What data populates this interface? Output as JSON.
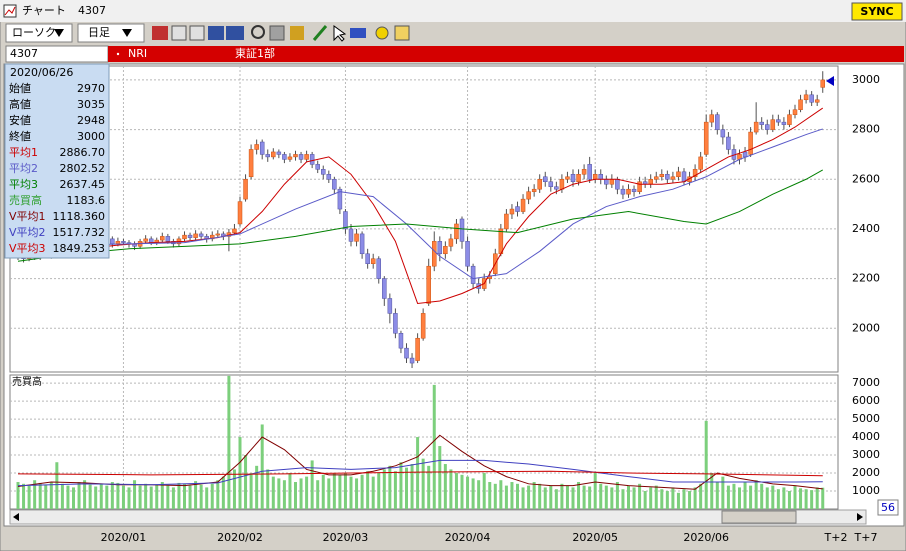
{
  "window": {
    "title": "チャート",
    "code": "4307",
    "sync": "SYNC"
  },
  "toolbar": {
    "chart_style": "ローソク",
    "period": "日足"
  },
  "header": {
    "code": "4307",
    "name": "NRI",
    "market": "東証1部"
  },
  "info": {
    "date": "2020/06/26",
    "ohlc_labels": [
      "始値",
      "高値",
      "安値",
      "終値"
    ],
    "ma_values": [
      "2886.70",
      "2802.52",
      "2637.45"
    ],
    "vma_values": [
      "1118.360",
      "1517.732",
      "1849.253"
    ]
  },
  "footer": {
    "offset_labels": [
      "T+2",
      "T+7"
    ],
    "count": 56
  },
  "chart_data": [
    {
      "type": "candlestick",
      "up_color": "#ff7f3f",
      "down_color": "#8c8ce6",
      "ylim": [
        1824,
        3056
      ],
      "yticks": [
        2000,
        2200,
        2400,
        2600,
        2800,
        3000
      ],
      "grid": true,
      "open": [
        2300,
        2290,
        2280,
        2300,
        2285,
        2295,
        2300,
        2290,
        2310,
        2330,
        2320,
        2340,
        2345,
        2330,
        2350,
        2340,
        2355,
        2360,
        2340,
        2350,
        2345,
        2340,
        2330,
        2350,
        2360,
        2345,
        2355,
        2370,
        2350,
        2340,
        2360,
        2375,
        2365,
        2380,
        2370,
        2360,
        2375,
        2380,
        2370,
        2385,
        2420,
        2520,
        2610,
        2720,
        2750,
        2700,
        2690,
        2710,
        2700,
        2680,
        2690,
        2700,
        2680,
        2700,
        2660,
        2640,
        2620,
        2600,
        2560,
        2470,
        2400,
        2350,
        2380,
        2300,
        2260,
        2280,
        2200,
        2120,
        2060,
        1980,
        1920,
        1880,
        1870,
        1960,
        2100,
        2250,
        2350,
        2300,
        2330,
        2360,
        2440,
        2350,
        2250,
        2180,
        2160,
        2200,
        2220,
        2300,
        2400,
        2460,
        2490,
        2470,
        2520,
        2550,
        2560,
        2610,
        2590,
        2570,
        2560,
        2600,
        2620,
        2590,
        2620,
        2660,
        2600,
        2620,
        2600,
        2580,
        2600,
        2560,
        2540,
        2560,
        2550,
        2590,
        2580,
        2600,
        2610,
        2620,
        2600,
        2610,
        2630,
        2590,
        2610,
        2640,
        2700,
        2830,
        2860,
        2800,
        2770,
        2720,
        2680,
        2710,
        2700,
        2790,
        2830,
        2820,
        2800,
        2840,
        2830,
        2820,
        2860,
        2880,
        2920,
        2940,
        2910,
        2970
      ],
      "high": [
        2315,
        2300,
        2315,
        2310,
        2305,
        2315,
        2310,
        2325,
        2340,
        2345,
        2355,
        2360,
        2355,
        2365,
        2360,
        2370,
        2375,
        2370,
        2365,
        2360,
        2355,
        2350,
        2360,
        2375,
        2370,
        2365,
        2385,
        2380,
        2360,
        2370,
        2390,
        2385,
        2395,
        2390,
        2380,
        2390,
        2395,
        2390,
        2400,
        2420,
        2530,
        2620,
        2740,
        2760,
        2760,
        2720,
        2725,
        2720,
        2710,
        2705,
        2715,
        2710,
        2715,
        2710,
        2675,
        2655,
        2635,
        2610,
        2570,
        2480,
        2420,
        2400,
        2390,
        2320,
        2300,
        2290,
        2210,
        2140,
        2080,
        1990,
        1940,
        1900,
        1980,
        2080,
        2280,
        2390,
        2370,
        2350,
        2380,
        2440,
        2450,
        2370,
        2260,
        2200,
        2220,
        2230,
        2320,
        2420,
        2480,
        2500,
        2510,
        2540,
        2570,
        2580,
        2620,
        2630,
        2610,
        2590,
        2620,
        2630,
        2640,
        2640,
        2660,
        2690,
        2640,
        2640,
        2615,
        2620,
        2610,
        2575,
        2580,
        2575,
        2610,
        2610,
        2620,
        2630,
        2640,
        2635,
        2630,
        2650,
        2645,
        2630,
        2660,
        2710,
        2860,
        2880,
        2870,
        2820,
        2790,
        2740,
        2720,
        2730,
        2810,
        2910,
        2850,
        2840,
        2860,
        2860,
        2850,
        2880,
        2900,
        2940,
        2960,
        2955,
        2940,
        3035
      ],
      "low": [
        2275,
        2265,
        2270,
        2275,
        2275,
        2285,
        2280,
        2285,
        2300,
        2310,
        2315,
        2330,
        2320,
        2325,
        2330,
        2335,
        2345,
        2325,
        2330,
        2335,
        2325,
        2315,
        2320,
        2340,
        2335,
        2335,
        2345,
        2340,
        2325,
        2330,
        2350,
        2355,
        2355,
        2360,
        2345,
        2350,
        2365,
        2355,
        2310,
        2375,
        2410,
        2510,
        2600,
        2700,
        2680,
        2670,
        2680,
        2685,
        2665,
        2670,
        2675,
        2665,
        2670,
        2645,
        2625,
        2600,
        2585,
        2540,
        2460,
        2380,
        2330,
        2330,
        2280,
        2240,
        2240,
        2180,
        2090,
        2020,
        1960,
        1900,
        1860,
        1840,
        1860,
        1950,
        2090,
        2230,
        2270,
        2280,
        2310,
        2340,
        2320,
        2230,
        2160,
        2140,
        2150,
        2180,
        2210,
        2290,
        2390,
        2440,
        2450,
        2460,
        2500,
        2530,
        2545,
        2570,
        2550,
        2540,
        2545,
        2585,
        2570,
        2575,
        2600,
        2585,
        2585,
        2580,
        2560,
        2565,
        2540,
        2520,
        2525,
        2530,
        2540,
        2565,
        2565,
        2585,
        2595,
        2585,
        2585,
        2595,
        2575,
        2575,
        2595,
        2625,
        2690,
        2810,
        2780,
        2740,
        2700,
        2660,
        2660,
        2670,
        2690,
        2780,
        2800,
        2780,
        2790,
        2815,
        2800,
        2810,
        2845,
        2870,
        2905,
        2895,
        2895,
        2948
      ],
      "close": [
        2290,
        2280,
        2300,
        2285,
        2295,
        2300,
        2290,
        2310,
        2330,
        2320,
        2340,
        2345,
        2330,
        2350,
        2340,
        2355,
        2360,
        2340,
        2350,
        2345,
        2340,
        2330,
        2350,
        2360,
        2345,
        2355,
        2370,
        2350,
        2340,
        2360,
        2375,
        2365,
        2380,
        2370,
        2360,
        2375,
        2380,
        2370,
        2385,
        2400,
        2510,
        2600,
        2720,
        2740,
        2700,
        2690,
        2710,
        2700,
        2680,
        2690,
        2700,
        2680,
        2700,
        2660,
        2640,
        2620,
        2600,
        2560,
        2480,
        2400,
        2350,
        2380,
        2300,
        2260,
        2280,
        2200,
        2120,
        2060,
        1980,
        1920,
        1880,
        1860,
        1960,
        2060,
        2250,
        2350,
        2300,
        2330,
        2360,
        2420,
        2350,
        2250,
        2180,
        2160,
        2200,
        2210,
        2300,
        2400,
        2460,
        2480,
        2470,
        2520,
        2550,
        2560,
        2600,
        2590,
        2570,
        2560,
        2600,
        2610,
        2590,
        2620,
        2640,
        2600,
        2620,
        2600,
        2580,
        2600,
        2560,
        2540,
        2560,
        2550,
        2590,
        2580,
        2600,
        2610,
        2620,
        2600,
        2610,
        2630,
        2590,
        2610,
        2640,
        2690,
        2830,
        2860,
        2800,
        2770,
        2720,
        2680,
        2700,
        2690,
        2790,
        2830,
        2820,
        2800,
        2840,
        2830,
        2820,
        2860,
        2880,
        2920,
        2940,
        2910,
        2920,
        3000
      ],
      "series": [
        {
          "name": "平均1",
          "color": "#cc0000",
          "x": [
            0,
            6,
            12,
            18,
            24,
            30,
            36,
            40,
            44,
            48,
            52,
            56,
            60,
            64,
            68,
            72,
            76,
            80,
            84,
            88,
            92,
            96,
            100,
            104,
            108,
            112,
            116,
            120,
            124,
            128,
            132,
            136,
            140,
            145
          ],
          "values": [
            2290,
            2300,
            2320,
            2335,
            2345,
            2350,
            2365,
            2385,
            2470,
            2580,
            2670,
            2690,
            2620,
            2500,
            2350,
            2100,
            2110,
            2140,
            2180,
            2340,
            2450,
            2540,
            2580,
            2600,
            2600,
            2580,
            2580,
            2590,
            2640,
            2690,
            2720,
            2760,
            2810,
            2886.7
          ]
        },
        {
          "name": "平均2",
          "color": "#5a5ac8",
          "x": [
            0,
            10,
            20,
            30,
            40,
            50,
            58,
            64,
            70,
            76,
            82,
            88,
            94,
            100,
            106,
            112,
            118,
            124,
            130,
            136,
            142,
            145
          ],
          "values": [
            2330,
            2335,
            2340,
            2345,
            2380,
            2480,
            2550,
            2530,
            2420,
            2290,
            2200,
            2220,
            2310,
            2420,
            2490,
            2530,
            2560,
            2610,
            2680,
            2730,
            2780,
            2802.52
          ]
        },
        {
          "name": "平均3",
          "color": "#008000",
          "x": [
            0,
            10,
            20,
            30,
            40,
            50,
            60,
            70,
            80,
            90,
            100,
            110,
            120,
            124,
            130,
            136,
            142,
            145
          ],
          "values": [
            2270,
            2300,
            2320,
            2330,
            2340,
            2370,
            2410,
            2420,
            2400,
            2385,
            2440,
            2470,
            2430,
            2420,
            2470,
            2540,
            2600,
            2637.45
          ]
        }
      ]
    },
    {
      "type": "bar",
      "title": "売買高",
      "color": "#7ccf7c",
      "ylim": [
        0,
        7450
      ],
      "yticks": [
        1000,
        2000,
        3000,
        4000,
        5000,
        6000,
        7000
      ],
      "grid": true,
      "categories": [
        null,
        null,
        null,
        null,
        null,
        null,
        null,
        null,
        null,
        null,
        null,
        null,
        null,
        null,
        null,
        null,
        null,
        null,
        null,
        "2020/01",
        null,
        null,
        null,
        null,
        null,
        null,
        null,
        null,
        null,
        null,
        null,
        null,
        null,
        null,
        null,
        null,
        null,
        null,
        null,
        null,
        "2020/02",
        null,
        null,
        null,
        null,
        null,
        null,
        null,
        null,
        null,
        null,
        null,
        null,
        null,
        null,
        null,
        null,
        null,
        null,
        "2020/03",
        null,
        null,
        null,
        null,
        null,
        null,
        null,
        null,
        null,
        null,
        null,
        null,
        null,
        null,
        null,
        null,
        null,
        null,
        null,
        null,
        null,
        "2020/04",
        null,
        null,
        null,
        null,
        null,
        null,
        null,
        null,
        null,
        null,
        null,
        null,
        null,
        null,
        null,
        null,
        null,
        null,
        null,
        null,
        null,
        null,
        "2020/05",
        null,
        null,
        null,
        null,
        null,
        null,
        null,
        null,
        null,
        null,
        null,
        null,
        null,
        null,
        null,
        null,
        null,
        null,
        null,
        "2020/06",
        null,
        null,
        null,
        null,
        null,
        null,
        null,
        null,
        null,
        null,
        null,
        null,
        null,
        null,
        null,
        null,
        null,
        null,
        null,
        null,
        null
      ],
      "values": [
        1500,
        1400,
        1300,
        1600,
        1450,
        1350,
        1500,
        2600,
        1400,
        1300,
        1200,
        1500,
        1600,
        1350,
        1250,
        1400,
        1300,
        1500,
        1450,
        1300,
        1200,
        1600,
        1300,
        1400,
        1250,
        1350,
        1500,
        1300,
        1200,
        1450,
        1400,
        1300,
        1550,
        1350,
        1200,
        1400,
        1600,
        1800,
        7400,
        2200,
        4000,
        3000,
        2000,
        2400,
        4700,
        2200,
        1800,
        1700,
        1600,
        2000,
        1500,
        1700,
        1800,
        2700,
        1600,
        1900,
        1700,
        2000,
        1900,
        2000,
        1800,
        1700,
        1900,
        2100,
        1800,
        2000,
        2200,
        2400,
        2100,
        2600,
        2300,
        2500,
        4000,
        2800,
        2400,
        6900,
        3500,
        2500,
        2200,
        2000,
        1900,
        1800,
        1700,
        1600,
        2000,
        1500,
        1400,
        1600,
        1300,
        1500,
        1400,
        1200,
        1300,
        1500,
        1400,
        1200,
        1300,
        1100,
        1400,
        1300,
        1200,
        1500,
        1300,
        1250,
        2000,
        1400,
        1300,
        1200,
        1500,
        1100,
        1300,
        1200,
        1400,
        1000,
        1200,
        1300,
        1100,
        1000,
        1200,
        900,
        1100,
        1000,
        1200,
        1400,
        4900,
        2000,
        1500,
        1800,
        1300,
        1400,
        1200,
        1500,
        1300,
        1600,
        1400,
        1200,
        1300,
        1100,
        1200,
        1000,
        1300,
        1150,
        1100,
        1050,
        1200,
        1183.6
      ],
      "series": [
        {
          "name": "V平均1",
          "color": "#800000",
          "x": [
            0,
            6,
            12,
            18,
            24,
            30,
            36,
            40,
            44,
            48,
            52,
            56,
            60,
            64,
            68,
            72,
            76,
            80,
            84,
            88,
            92,
            96,
            100,
            104,
            110,
            116,
            122,
            126,
            130,
            136,
            140,
            145
          ],
          "values": [
            1250,
            1500,
            1450,
            1350,
            1350,
            1300,
            1500,
            2600,
            4000,
            3300,
            2200,
            1900,
            1900,
            2100,
            2400,
            2900,
            4100,
            3200,
            2400,
            1800,
            1400,
            1300,
            1300,
            1500,
            1300,
            1200,
            1100,
            2000,
            1700,
            1400,
            1300,
            1118.36
          ]
        },
        {
          "name": "V平均2",
          "color": "#4040c0",
          "x": [
            0,
            12,
            24,
            36,
            44,
            52,
            60,
            68,
            76,
            84,
            92,
            100,
            110,
            118,
            124,
            132,
            140,
            145
          ],
          "values": [
            1300,
            1400,
            1350,
            1450,
            2100,
            2300,
            2200,
            2300,
            2700,
            2700,
            2500,
            2200,
            1800,
            1500,
            1500,
            1500,
            1500,
            1517.732
          ]
        },
        {
          "name": "V平均3",
          "color": "#cc0000",
          "x": [
            0,
            24,
            48,
            72,
            96,
            110,
            124,
            145
          ],
          "values": [
            1950,
            1900,
            1950,
            2050,
            2100,
            2000,
            1950,
            1849.253
          ]
        }
      ]
    }
  ]
}
